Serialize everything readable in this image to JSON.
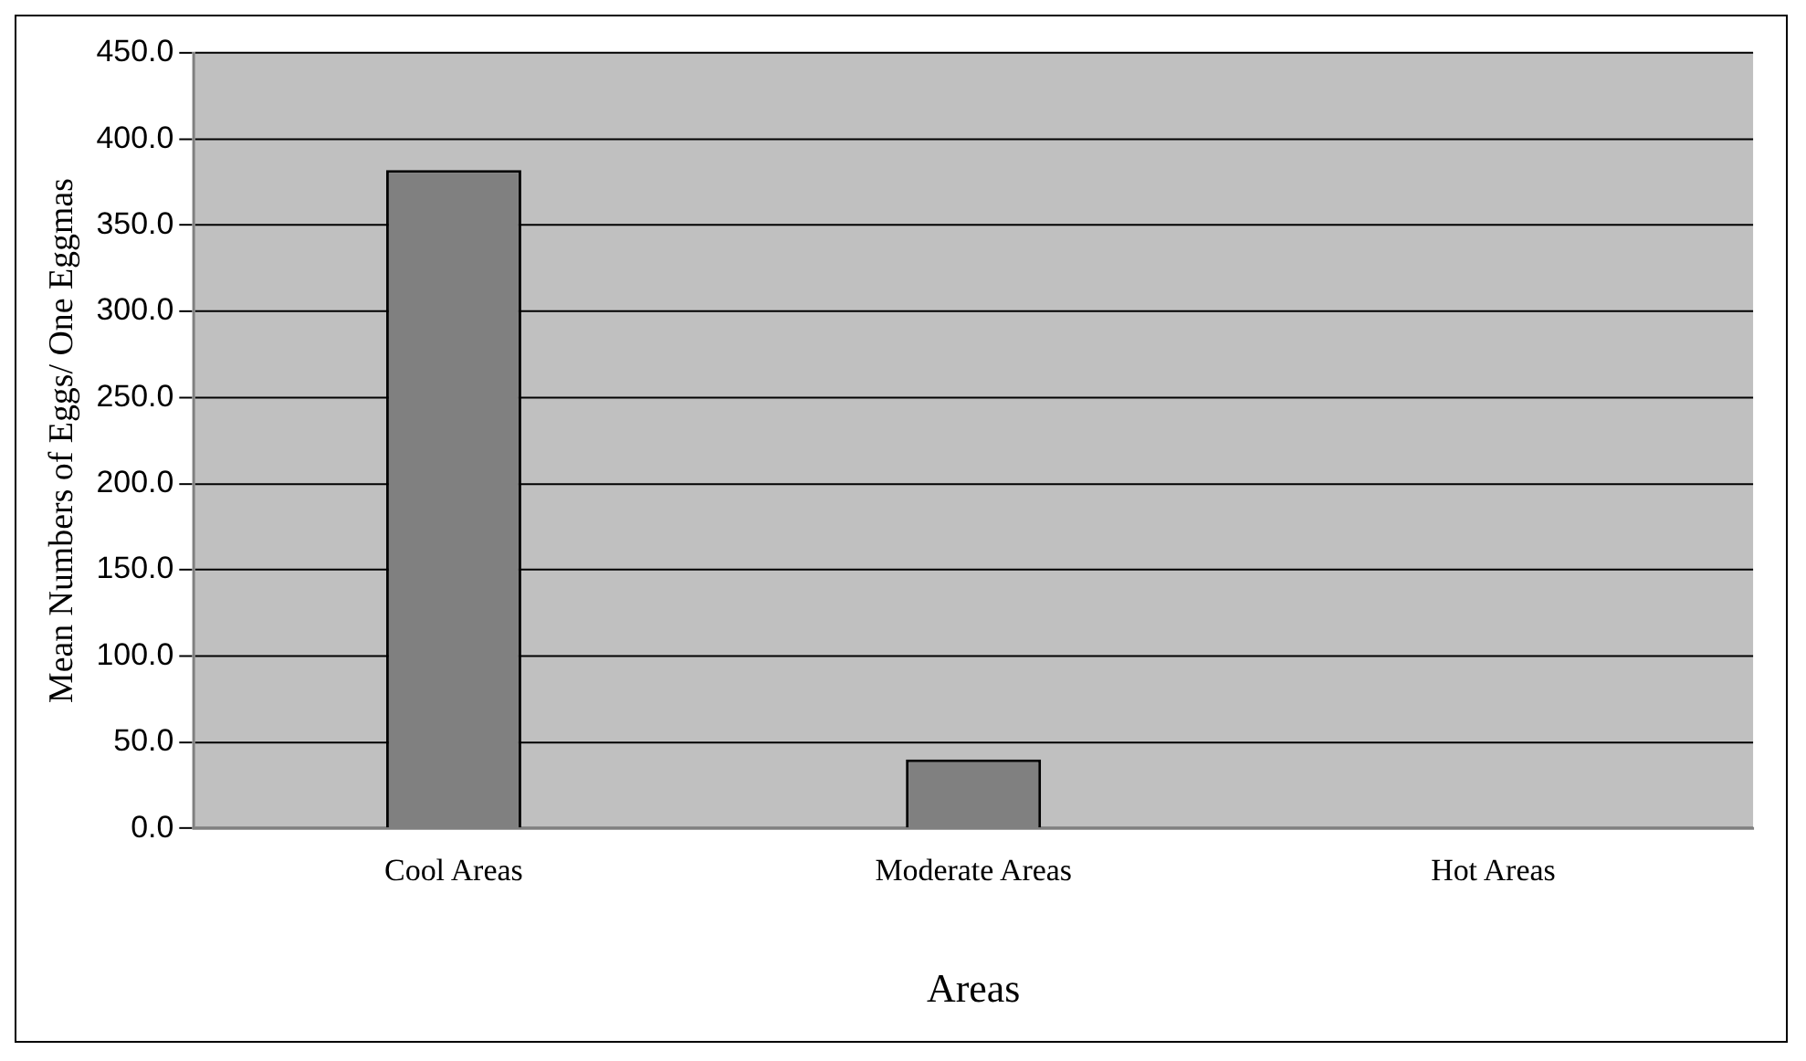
{
  "chart_data": {
    "type": "bar",
    "xlabel": "Areas",
    "ylabel": "Mean Numbers of Eggs/ One Eggmas",
    "categories": [
      "Cool Areas",
      "Moderate Areas",
      "Hot Areas"
    ],
    "values": [
      382,
      40,
      0
    ],
    "color": "#808080",
    "ylim": [
      0,
      450
    ],
    "yticks": [
      {
        "value": 0,
        "label": "0.0"
      },
      {
        "value": 50,
        "label": "50.0"
      },
      {
        "value": 100,
        "label": "100.0"
      },
      {
        "value": 150,
        "label": "150.0"
      },
      {
        "value": 200,
        "label": "200.0"
      },
      {
        "value": 250,
        "label": "250.0"
      },
      {
        "value": 300,
        "label": "300.0"
      },
      {
        "value": 350,
        "label": "350.0"
      },
      {
        "value": 400,
        "label": "400.0"
      },
      {
        "value": 450,
        "label": "450.0"
      }
    ],
    "grid": "y",
    "legend": false
  }
}
